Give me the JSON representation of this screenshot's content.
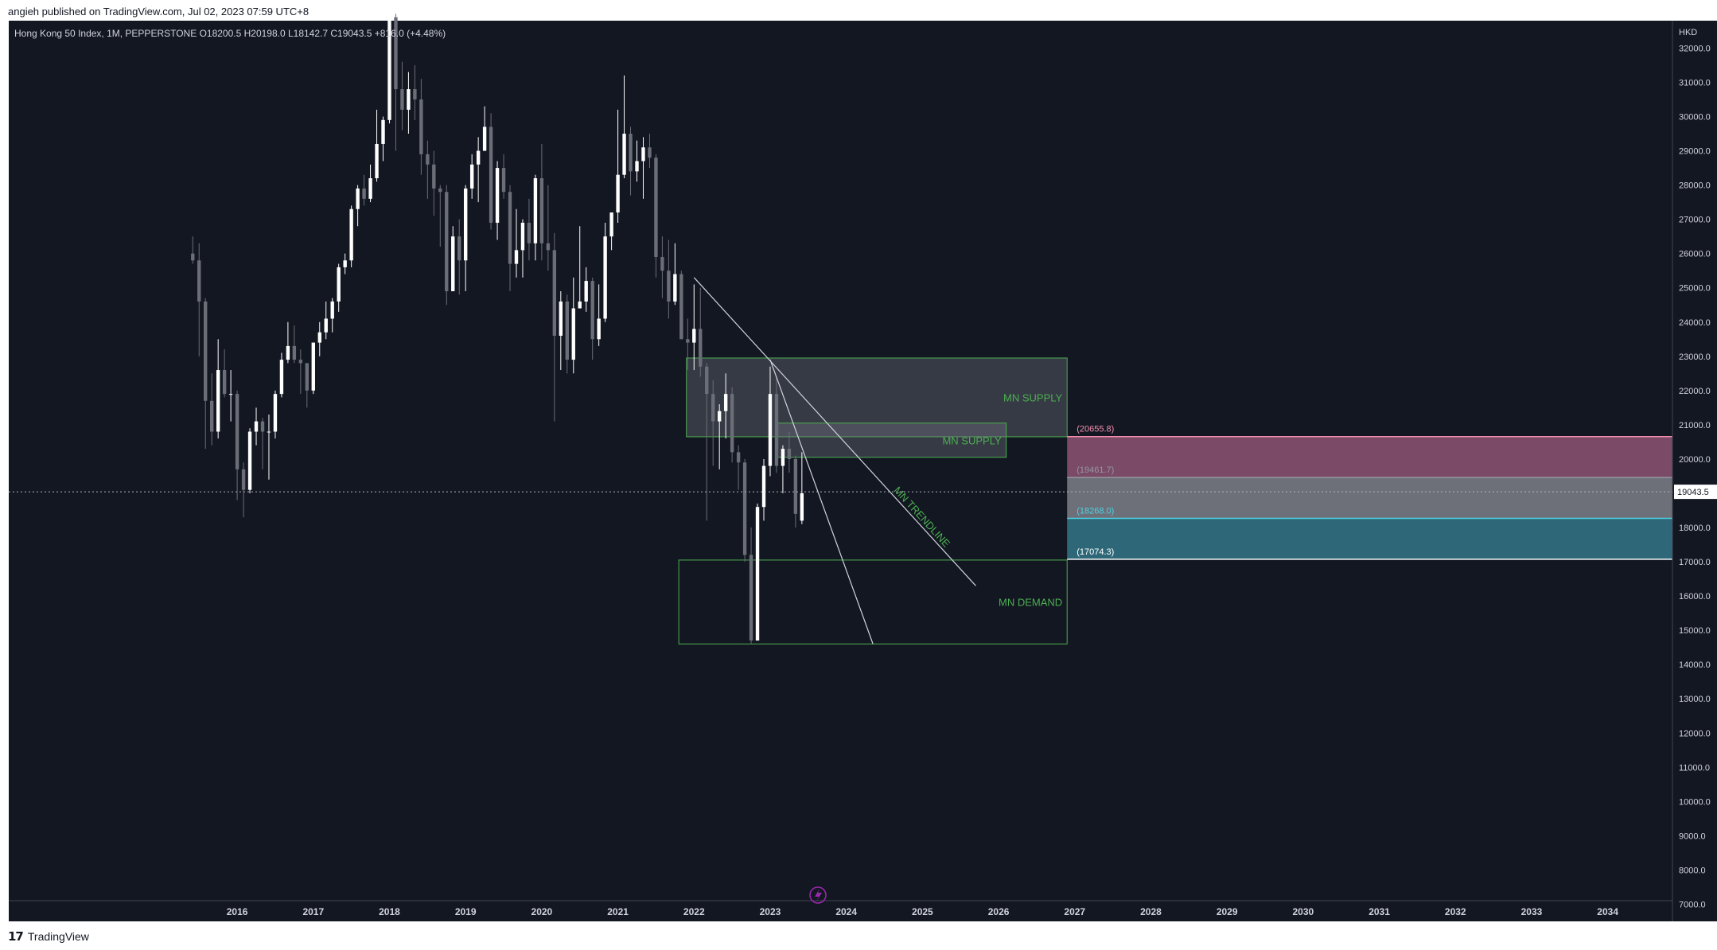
{
  "header": {
    "published": "angieh published on TradingView.com, Jul 02, 2023 07:59 UTC+8"
  },
  "footer": {
    "brand_logo": "17",
    "brand_name": "TradingView"
  },
  "colors": {
    "background": "#131722",
    "candle_up": "#ffffff",
    "candle_down": "#6b6e76",
    "zone_fill": "#787b86",
    "zone_border": "#4caf50",
    "zone_text": "#4caf50",
    "fib_pink": "#f48fb1",
    "fib_gray": "#9598a1",
    "fib_teal": "#4dd0e1",
    "fib_white": "#ffffff",
    "alert_icon": "#9c27b0"
  },
  "chart_data": {
    "type": "candlestick",
    "legend": "Hong Kong 50 Index, 1M, PEPPERSTONE  O18200.5  H20198.0  L18142.7  C19043.5  +816.0 (+4.48%)",
    "currency": "HKD",
    "last_price": "19043.5",
    "ylim": [
      6500,
      32800
    ],
    "yticks": [
      "32000.0",
      "31000.0",
      "30000.0",
      "29000.0",
      "28000.0",
      "27000.0",
      "26000.0",
      "25000.0",
      "24000.0",
      "23000.0",
      "22000.0",
      "21000.0",
      "20000.0",
      "19000.0",
      "18000.0",
      "17000.0",
      "16000.0",
      "15000.0",
      "14000.0",
      "13000.0",
      "12000.0",
      "11000.0",
      "10000.0",
      "9000.0",
      "8000.0",
      "7000.0"
    ],
    "xlim": [
      2013.0,
      2034.85
    ],
    "xticks": [
      "2016",
      "2017",
      "2018",
      "2019",
      "2020",
      "2021",
      "2022",
      "2023",
      "2024",
      "2025",
      "2026",
      "2027",
      "2028",
      "2029",
      "2030",
      "2031",
      "2032",
      "2033",
      "2034"
    ],
    "candles": [
      {
        "t": "2015-06",
        "o": 26000,
        "h": 26500,
        "l": 25700,
        "c": 25800
      },
      {
        "t": "2015-07",
        "o": 25800,
        "h": 26300,
        "l": 23000,
        "c": 24600
      },
      {
        "t": "2015-08",
        "o": 24600,
        "h": 24700,
        "l": 20300,
        "c": 21700
      },
      {
        "t": "2015-09",
        "o": 21700,
        "h": 22500,
        "l": 20400,
        "c": 20800
      },
      {
        "t": "2015-10",
        "o": 20800,
        "h": 23500,
        "l": 20600,
        "c": 22600
      },
      {
        "t": "2015-11",
        "o": 22600,
        "h": 23200,
        "l": 21800,
        "c": 21900
      },
      {
        "t": "2015-12",
        "o": 21900,
        "h": 22600,
        "l": 21100,
        "c": 21900
      },
      {
        "t": "2016-01",
        "o": 21900,
        "h": 22000,
        "l": 18800,
        "c": 19700
      },
      {
        "t": "2016-02",
        "o": 19700,
        "h": 19900,
        "l": 18300,
        "c": 19100
      },
      {
        "t": "2016-03",
        "o": 19100,
        "h": 20900,
        "l": 19000,
        "c": 20800
      },
      {
        "t": "2016-04",
        "o": 20800,
        "h": 21500,
        "l": 20400,
        "c": 21100
      },
      {
        "t": "2016-05",
        "o": 21100,
        "h": 21200,
        "l": 19700,
        "c": 20800
      },
      {
        "t": "2016-06",
        "o": 20800,
        "h": 21300,
        "l": 19400,
        "c": 20800
      },
      {
        "t": "2016-07",
        "o": 20800,
        "h": 22000,
        "l": 20600,
        "c": 21900
      },
      {
        "t": "2016-08",
        "o": 21900,
        "h": 23100,
        "l": 21800,
        "c": 22900
      },
      {
        "t": "2016-09",
        "o": 22900,
        "h": 24000,
        "l": 22800,
        "c": 23300
      },
      {
        "t": "2016-10",
        "o": 23300,
        "h": 23900,
        "l": 22800,
        "c": 22900
      },
      {
        "t": "2016-11",
        "o": 22900,
        "h": 23200,
        "l": 21900,
        "c": 22800
      },
      {
        "t": "2016-12",
        "o": 22800,
        "h": 22800,
        "l": 21500,
        "c": 22000
      },
      {
        "t": "2017-01",
        "o": 22000,
        "h": 23400,
        "l": 21900,
        "c": 23400
      },
      {
        "t": "2017-02",
        "o": 23400,
        "h": 24000,
        "l": 23000,
        "c": 23700
      },
      {
        "t": "2017-03",
        "o": 23700,
        "h": 24600,
        "l": 23500,
        "c": 24100
      },
      {
        "t": "2017-04",
        "o": 24100,
        "h": 24700,
        "l": 23700,
        "c": 24600
      },
      {
        "t": "2017-05",
        "o": 24600,
        "h": 25700,
        "l": 24300,
        "c": 25600
      },
      {
        "t": "2017-06",
        "o": 25600,
        "h": 26000,
        "l": 25400,
        "c": 25800
      },
      {
        "t": "2017-07",
        "o": 25800,
        "h": 27400,
        "l": 25600,
        "c": 27300
      },
      {
        "t": "2017-08",
        "o": 27300,
        "h": 28000,
        "l": 26800,
        "c": 27900
      },
      {
        "t": "2017-09",
        "o": 27900,
        "h": 28300,
        "l": 27400,
        "c": 27600
      },
      {
        "t": "2017-10",
        "o": 27600,
        "h": 28600,
        "l": 27500,
        "c": 28200
      },
      {
        "t": "2017-11",
        "o": 28200,
        "h": 30200,
        "l": 28100,
        "c": 29200
      },
      {
        "t": "2017-12",
        "o": 29200,
        "h": 30000,
        "l": 28700,
        "c": 29900
      },
      {
        "t": "2018-01",
        "o": 29900,
        "h": 33500,
        "l": 29800,
        "c": 32900
      },
      {
        "t": "2018-02",
        "o": 32900,
        "h": 33000,
        "l": 29000,
        "c": 30800
      },
      {
        "t": "2018-03",
        "o": 30800,
        "h": 31600,
        "l": 29600,
        "c": 30200
      },
      {
        "t": "2018-04",
        "o": 30200,
        "h": 31300,
        "l": 29500,
        "c": 30800
      },
      {
        "t": "2018-05",
        "o": 30800,
        "h": 31500,
        "l": 29900,
        "c": 30500
      },
      {
        "t": "2018-06",
        "o": 30500,
        "h": 31100,
        "l": 28300,
        "c": 28900
      },
      {
        "t": "2018-07",
        "o": 28900,
        "h": 29300,
        "l": 27600,
        "c": 28600
      },
      {
        "t": "2018-08",
        "o": 28600,
        "h": 29000,
        "l": 27100,
        "c": 27900
      },
      {
        "t": "2018-09",
        "o": 27900,
        "h": 28000,
        "l": 26200,
        "c": 27800
      },
      {
        "t": "2018-10",
        "o": 27800,
        "h": 28000,
        "l": 24500,
        "c": 24900
      },
      {
        "t": "2018-11",
        "o": 24900,
        "h": 26800,
        "l": 24900,
        "c": 26500
      },
      {
        "t": "2018-12",
        "o": 26500,
        "h": 27000,
        "l": 24800,
        "c": 25800
      },
      {
        "t": "2019-01",
        "o": 25800,
        "h": 28000,
        "l": 24900,
        "c": 27900
      },
      {
        "t": "2019-02",
        "o": 27900,
        "h": 28900,
        "l": 27600,
        "c": 28600
      },
      {
        "t": "2019-03",
        "o": 28600,
        "h": 29400,
        "l": 27500,
        "c": 29000
      },
      {
        "t": "2019-04",
        "o": 29000,
        "h": 30300,
        "l": 29000,
        "c": 29700
      },
      {
        "t": "2019-05",
        "o": 29700,
        "h": 30100,
        "l": 26700,
        "c": 26900
      },
      {
        "t": "2019-06",
        "o": 26900,
        "h": 28700,
        "l": 26400,
        "c": 28500
      },
      {
        "t": "2019-07",
        "o": 28500,
        "h": 28900,
        "l": 27600,
        "c": 27800
      },
      {
        "t": "2019-08",
        "o": 27800,
        "h": 28000,
        "l": 24900,
        "c": 25700
      },
      {
        "t": "2019-09",
        "o": 25700,
        "h": 27300,
        "l": 25300,
        "c": 26100
      },
      {
        "t": "2019-10",
        "o": 26100,
        "h": 27000,
        "l": 25300,
        "c": 26900
      },
      {
        "t": "2019-11",
        "o": 26900,
        "h": 27600,
        "l": 25800,
        "c": 26300
      },
      {
        "t": "2019-12",
        "o": 26300,
        "h": 28300,
        "l": 25800,
        "c": 28200
      },
      {
        "t": "2020-01",
        "o": 28200,
        "h": 29200,
        "l": 25800,
        "c": 26300
      },
      {
        "t": "2020-02",
        "o": 26300,
        "h": 28000,
        "l": 25500,
        "c": 26100
      },
      {
        "t": "2020-03",
        "o": 26100,
        "h": 26600,
        "l": 21100,
        "c": 23600
      },
      {
        "t": "2020-04",
        "o": 23600,
        "h": 24900,
        "l": 22600,
        "c": 24600
      },
      {
        "t": "2020-05",
        "o": 24600,
        "h": 24800,
        "l": 22500,
        "c": 22900
      },
      {
        "t": "2020-06",
        "o": 22900,
        "h": 25300,
        "l": 22500,
        "c": 24400
      },
      {
        "t": "2020-07",
        "o": 24400,
        "h": 26800,
        "l": 24400,
        "c": 24600
      },
      {
        "t": "2020-08",
        "o": 24600,
        "h": 25600,
        "l": 24300,
        "c": 25200
      },
      {
        "t": "2020-09",
        "o": 25200,
        "h": 25300,
        "l": 22900,
        "c": 23500
      },
      {
        "t": "2020-10",
        "o": 23500,
        "h": 25100,
        "l": 23300,
        "c": 24100
      },
      {
        "t": "2020-11",
        "o": 24100,
        "h": 26900,
        "l": 24000,
        "c": 26500
      },
      {
        "t": "2020-12",
        "o": 26500,
        "h": 27000,
        "l": 26100,
        "c": 27200
      },
      {
        "t": "2021-01",
        "o": 27200,
        "h": 30200,
        "l": 26900,
        "c": 28300
      },
      {
        "t": "2021-02",
        "o": 28300,
        "h": 31200,
        "l": 28200,
        "c": 29500
      },
      {
        "t": "2021-03",
        "o": 29500,
        "h": 29700,
        "l": 27700,
        "c": 28400
      },
      {
        "t": "2021-04",
        "o": 28400,
        "h": 29300,
        "l": 28100,
        "c": 28700
      },
      {
        "t": "2021-05",
        "o": 28700,
        "h": 29400,
        "l": 27600,
        "c": 29100
      },
      {
        "t": "2021-06",
        "o": 29100,
        "h": 29500,
        "l": 28500,
        "c": 28800
      },
      {
        "t": "2021-07",
        "o": 28800,
        "h": 28900,
        "l": 25300,
        "c": 25900
      },
      {
        "t": "2021-08",
        "o": 25900,
        "h": 26500,
        "l": 24700,
        "c": 25500
      },
      {
        "t": "2021-09",
        "o": 25500,
        "h": 26400,
        "l": 24100,
        "c": 24600
      },
      {
        "t": "2021-10",
        "o": 24600,
        "h": 26300,
        "l": 24500,
        "c": 25400
      },
      {
        "t": "2021-11",
        "o": 25400,
        "h": 25500,
        "l": 23500,
        "c": 23500
      },
      {
        "t": "2021-12",
        "o": 23500,
        "h": 24100,
        "l": 22600,
        "c": 23400
      },
      {
        "t": "2022-01",
        "o": 23400,
        "h": 25100,
        "l": 22600,
        "c": 23800
      },
      {
        "t": "2022-02",
        "o": 23800,
        "h": 25000,
        "l": 22400,
        "c": 22700
      },
      {
        "t": "2022-03",
        "o": 22700,
        "h": 22800,
        "l": 18200,
        "c": 21900
      },
      {
        "t": "2022-04",
        "o": 21900,
        "h": 22300,
        "l": 19800,
        "c": 21100
      },
      {
        "t": "2022-05",
        "o": 21100,
        "h": 21600,
        "l": 19700,
        "c": 21400
      },
      {
        "t": "2022-06",
        "o": 21400,
        "h": 22500,
        "l": 20600,
        "c": 21900
      },
      {
        "t": "2022-07",
        "o": 21900,
        "h": 22100,
        "l": 19900,
        "c": 20200
      },
      {
        "t": "2022-08",
        "o": 20200,
        "h": 20400,
        "l": 19100,
        "c": 19900
      },
      {
        "t": "2022-09",
        "o": 19900,
        "h": 20000,
        "l": 17000,
        "c": 17200
      },
      {
        "t": "2022-10",
        "o": 17200,
        "h": 18000,
        "l": 14600,
        "c": 14700
      },
      {
        "t": "2022-11",
        "o": 14700,
        "h": 18700,
        "l": 14700,
        "c": 18600
      },
      {
        "t": "2022-12",
        "o": 18600,
        "h": 20000,
        "l": 18200,
        "c": 19800
      },
      {
        "t": "2023-01",
        "o": 19800,
        "h": 22700,
        "l": 19500,
        "c": 21900
      },
      {
        "t": "2023-02",
        "o": 21900,
        "h": 22400,
        "l": 19600,
        "c": 19800
      },
      {
        "t": "2023-03",
        "o": 19800,
        "h": 20400,
        "l": 19000,
        "c": 20300
      },
      {
        "t": "2023-04",
        "o": 20300,
        "h": 20800,
        "l": 19600,
        "c": 20000
      },
      {
        "t": "2023-05",
        "o": 20000,
        "h": 20100,
        "l": 18000,
        "c": 18400
      },
      {
        "t": "2023-06",
        "o": 18200,
        "h": 20200,
        "l": 18100,
        "c": 19000
      }
    ],
    "zones": [
      {
        "label": "MN SUPPLY",
        "x0": 2021.9,
        "x1": 2026.9,
        "y0": 20650,
        "y1": 22950
      },
      {
        "label": "MN SUPPLY",
        "x0": 2023.1,
        "x1": 2026.1,
        "y0": 20050,
        "y1": 21050
      },
      {
        "label": "MN DEMAND",
        "x0": 2021.8,
        "x1": 2026.9,
        "y0": 14600,
        "y1": 17050
      }
    ],
    "trendlines": [
      {
        "label": "MN TRENDLINE",
        "x0": 2022.0,
        "y0": 25300,
        "x1": 2025.7,
        "y1": 16300
      },
      {
        "label": "",
        "x0": 2023.0,
        "y0": 22900,
        "x1": 2024.35,
        "y1": 14600
      }
    ],
    "fib_levels": [
      {
        "label": "(20655.8)",
        "value": 20655.8
      },
      {
        "label": "(19461.7)",
        "value": 19461.7
      },
      {
        "label": "(18268.0)",
        "value": 18268.0
      },
      {
        "label": "(17074.3)",
        "value": 17074.3
      }
    ],
    "fib_x0": 2026.9
  }
}
